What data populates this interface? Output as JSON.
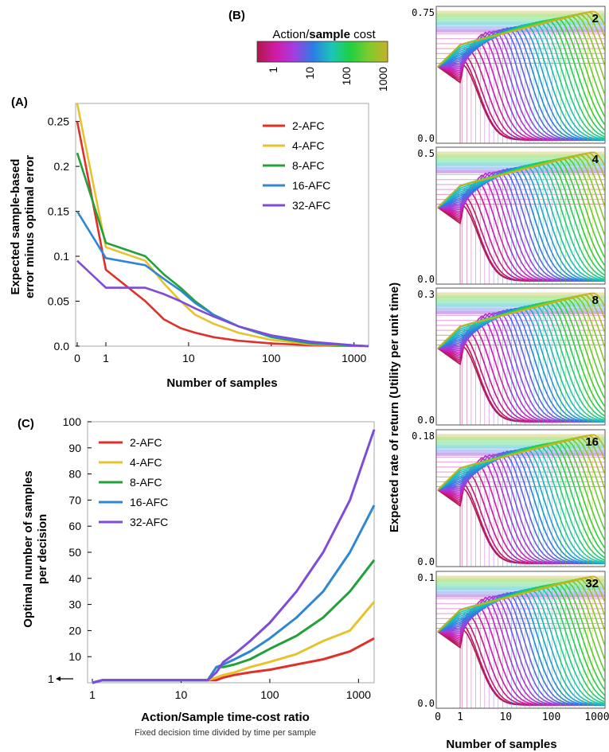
{
  "panels": {
    "A": "(A)",
    "B": "(B)",
    "C": "(C)"
  },
  "chart_data": [
    {
      "id": "A",
      "type": "line",
      "title": "",
      "xlabel": "Number of samples",
      "ylabel_lines": [
        "Expected sample-based",
        "error minus optimal error"
      ],
      "xscale": "log",
      "xlim": [
        0,
        1500
      ],
      "ylim": [
        0,
        0.27
      ],
      "x_tick_labels": [
        "0",
        "1",
        "10",
        "100",
        "1000"
      ],
      "x_ticks": [
        0,
        1,
        10,
        100,
        1000
      ],
      "y_tick_labels": [
        "0.0",
        "0.05",
        "0.1",
        "0.15",
        "0.2",
        "0.25"
      ],
      "y_ticks": [
        0,
        0.05,
        0.1,
        0.15,
        0.2,
        0.25
      ],
      "legend": "top-right",
      "series": [
        {
          "name": "2-AFC",
          "color": "#e0302a",
          "x": [
            0,
            1,
            3,
            5,
            8,
            12,
            20,
            40,
            100,
            300,
            1000,
            1500
          ],
          "y": [
            0.25,
            0.085,
            0.05,
            0.03,
            0.02,
            0.015,
            0.01,
            0.006,
            0.003,
            0.001,
            0.0002,
            0.0
          ]
        },
        {
          "name": "4-AFC",
          "color": "#e6c32e",
          "x": [
            0,
            1,
            3,
            5,
            8,
            12,
            20,
            40,
            100,
            300,
            1000,
            1500
          ],
          "y": [
            0.27,
            0.11,
            0.095,
            0.07,
            0.05,
            0.035,
            0.025,
            0.015,
            0.007,
            0.002,
            0.0004,
            0.0
          ]
        },
        {
          "name": "8-AFC",
          "color": "#22a03a",
          "x": [
            0,
            1,
            3,
            5,
            8,
            12,
            20,
            40,
            100,
            300,
            1000,
            1500
          ],
          "y": [
            0.215,
            0.115,
            0.1,
            0.08,
            0.065,
            0.05,
            0.035,
            0.022,
            0.01,
            0.003,
            0.0006,
            0.0
          ]
        },
        {
          "name": "16-AFC",
          "color": "#2f86d2",
          "x": [
            0,
            1,
            3,
            5,
            8,
            12,
            20,
            40,
            100,
            300,
            1000,
            1500
          ],
          "y": [
            0.15,
            0.098,
            0.09,
            0.075,
            0.062,
            0.048,
            0.035,
            0.022,
            0.011,
            0.004,
            0.0008,
            0.0
          ]
        },
        {
          "name": "32-AFC",
          "color": "#7f4bd8",
          "x": [
            0,
            1,
            3,
            5,
            8,
            12,
            20,
            40,
            100,
            300,
            1000,
            1500
          ],
          "y": [
            0.095,
            0.065,
            0.065,
            0.058,
            0.05,
            0.042,
            0.033,
            0.022,
            0.012,
            0.005,
            0.001,
            0.0
          ]
        }
      ]
    },
    {
      "id": "C",
      "type": "line",
      "title": "",
      "xlabel": "Action/Sample time-cost ratio",
      "xsublabel": "Fixed decision time divided by time per sample",
      "ylabel_lines": [
        "Optimal number of samples",
        "per decision"
      ],
      "xscale": "log",
      "xlim": [
        1,
        1500
      ],
      "ylim": [
        0,
        100
      ],
      "x_tick_labels": [
        "1",
        "10",
        "100",
        "1000"
      ],
      "x_ticks": [
        1,
        10,
        100,
        1000
      ],
      "y_tick_labels": [
        "10",
        "20",
        "30",
        "40",
        "50",
        "60",
        "70",
        "80",
        "90",
        "100"
      ],
      "y_ticks": [
        10,
        20,
        30,
        40,
        50,
        60,
        70,
        80,
        90,
        100
      ],
      "annotation": "1",
      "legend": "top-left",
      "series": [
        {
          "name": "2-AFC",
          "color": "#e0302a",
          "x": [
            1,
            1.3,
            20,
            25,
            30,
            40,
            60,
            100,
            200,
            400,
            800,
            1500
          ],
          "y": [
            0,
            1,
            1,
            1,
            2,
            3,
            4,
            5,
            7,
            9,
            12,
            17
          ]
        },
        {
          "name": "4-AFC",
          "color": "#e6c32e",
          "x": [
            1,
            1.3,
            20,
            25,
            30,
            40,
            60,
            100,
            200,
            400,
            800,
            1500
          ],
          "y": [
            0,
            1,
            1,
            2,
            3,
            4,
            6,
            8,
            11,
            16,
            20,
            31
          ]
        },
        {
          "name": "8-AFC",
          "color": "#22a03a",
          "x": [
            1,
            1.3,
            20,
            25,
            30,
            40,
            60,
            100,
            200,
            400,
            800,
            1500
          ],
          "y": [
            0,
            1,
            1,
            6,
            6,
            7,
            9,
            13,
            18,
            25,
            35,
            47
          ]
        },
        {
          "name": "16-AFC",
          "color": "#2f86d2",
          "x": [
            1,
            1.3,
            20,
            25,
            30,
            40,
            60,
            100,
            200,
            400,
            800,
            1500
          ],
          "y": [
            0,
            1,
            1,
            6,
            7,
            9,
            12,
            17,
            25,
            35,
            50,
            68
          ]
        },
        {
          "name": "32-AFC",
          "color": "#7f4bd8",
          "x": [
            1,
            1.3,
            20,
            25,
            30,
            40,
            60,
            100,
            200,
            400,
            800,
            1500
          ],
          "y": [
            0,
            1,
            1,
            4,
            8,
            11,
            16,
            23,
            35,
            50,
            70,
            97
          ]
        }
      ]
    },
    {
      "id": "B",
      "type": "line",
      "title": "",
      "colorbar": {
        "label_prefix": "Action/",
        "label_bold": "sample",
        "label_suffix": " cost",
        "tick_labels": [
          "1",
          "10",
          "100",
          "1000"
        ],
        "colors": [
          "#b0184a",
          "#d21aa8",
          "#a23ee0",
          "#2b7de6",
          "#1bc6b8",
          "#1fd040",
          "#7ccc2c",
          "#c8b028"
        ]
      },
      "xlabel": "Number of samples",
      "ylabel": "Expected rate of return (Utility per unit time)",
      "xscale": "log",
      "x_tick_labels": [
        "0",
        "1",
        "10",
        "100",
        "1000"
      ],
      "x_ticks": [
        0,
        1,
        10,
        100,
        1000
      ],
      "curve_count": 32,
      "subpanels": [
        {
          "label": "2",
          "ymax_label": "0.75",
          "ymin_label": "0.0"
        },
        {
          "label": "4",
          "ymax_label": "0.5",
          "ymin_label": "0.0"
        },
        {
          "label": "8",
          "ymax_label": "0.3",
          "ymin_label": "0.0"
        },
        {
          "label": "16",
          "ymax_label": "0.18",
          "ymin_label": "0.0"
        },
        {
          "label": "32",
          "ymax_label": "0.1",
          "ymin_label": "0.0"
        }
      ]
    }
  ]
}
